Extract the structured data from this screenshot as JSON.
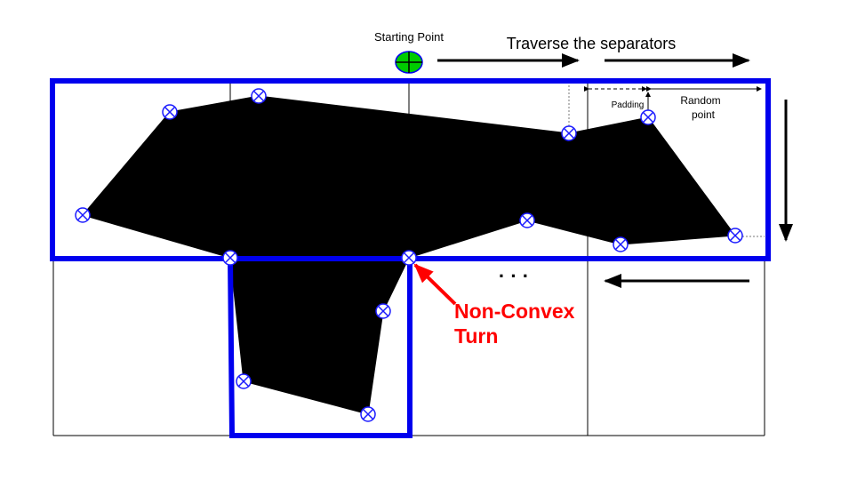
{
  "labels": {
    "starting_point": "Starting Point",
    "traverse": "Traverse the separators",
    "padding": "Padding",
    "random_point_line1": "Random",
    "random_point_line2": "point",
    "ellipsis": "· · ·",
    "non_convex_line1": "Non-Convex",
    "non_convex_line2": "Turn"
  },
  "colors": {
    "polygon": "#000000",
    "separator_highlight": "#0000ee",
    "vertex_marker": "#1a1aff",
    "start_marker": "#00cc00",
    "annotation": "#ff0000"
  },
  "icons": {
    "vertex": "circle-cross-icon",
    "start": "circle-plus-icon"
  }
}
